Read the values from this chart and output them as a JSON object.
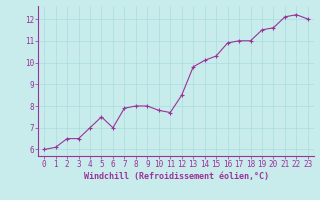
{
  "x": [
    0,
    1,
    2,
    3,
    4,
    5,
    6,
    7,
    8,
    9,
    10,
    11,
    12,
    13,
    14,
    15,
    16,
    17,
    18,
    19,
    20,
    21,
    22,
    23
  ],
  "y": [
    6.0,
    6.1,
    6.5,
    6.5,
    7.0,
    7.5,
    7.0,
    7.9,
    8.0,
    8.0,
    7.8,
    7.7,
    8.5,
    9.8,
    10.1,
    10.3,
    10.9,
    11.0,
    11.0,
    11.5,
    11.6,
    12.1,
    12.2,
    12.0
  ],
  "line_color": "#993399",
  "marker": "+",
  "marker_size": 3,
  "marker_color": "#993399",
  "line_width": 0.8,
  "xlabel": "Windchill (Refroidissement éolien,°C)",
  "xlabel_fontsize": 6,
  "ylabel": "",
  "xlim": [
    -0.5,
    23.5
  ],
  "ylim": [
    5.7,
    12.6
  ],
  "yticks": [
    6,
    7,
    8,
    9,
    10,
    11,
    12
  ],
  "xticks": [
    0,
    1,
    2,
    3,
    4,
    5,
    6,
    7,
    8,
    9,
    10,
    11,
    12,
    13,
    14,
    15,
    16,
    17,
    18,
    19,
    20,
    21,
    22,
    23
  ],
  "background_color": "#c8ecec",
  "grid_color": "#aadddd",
  "tick_color": "#993399",
  "tick_fontsize": 5.5,
  "spine_color": "#993399",
  "title": ""
}
